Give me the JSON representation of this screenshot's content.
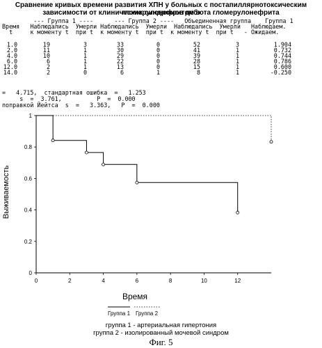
{
  "title_line1": "Сравнение кривых времени развития ХПН у больных с постапиллярнотоксическим гломерулонефритом в",
  "title_line2": "зависимости от клинических синдромов дебюта гломерулонефрита",
  "table": {
    "group_header": "         --- Группа 1 ----      --- Группа 2 ----   Объединенная группа    Группа 1",
    "header1": "Время   Наблюдались  Умерли Наблюдались  Умерли  Наблюдались  Умерли   Наблюдаем.",
    "header2": "  t     к моменту t  при t  к моменту t  при t  к моменту t  при t   - Ожидаем.",
    "rows": [
      {
        "t": "1.0",
        "n1": "19",
        "d1": "3",
        "n2": "33",
        "d2": "0",
        "n": "52",
        "d": "3",
        "diff": "1.904"
      },
      {
        "t": "2.0",
        "n1": "11",
        "d1": "1",
        "n2": "30",
        "d2": "0",
        "n": "41",
        "d": "1",
        "diff": "0.732"
      },
      {
        "t": "4.0",
        "n1": "10",
        "d1": "1",
        "n2": "29",
        "d2": "0",
        "n": "39",
        "d": "1",
        "diff": "0.744"
      },
      {
        "t": "6.0",
        "n1": "6",
        "d1": "1",
        "n2": "22",
        "d2": "0",
        "n": "28",
        "d": "1",
        "diff": "0.786"
      },
      {
        "t": "12.0",
        "n1": "2",
        "d1": "1",
        "n2": "13",
        "d2": "0",
        "n": "15",
        "d": "1",
        "diff": "0.600"
      },
      {
        "t": "14.0",
        "n1": "2",
        "d1": "0",
        "n2": "6",
        "d2": "1",
        "n": "8",
        "d": "1",
        "diff": "-0.250"
      }
    ]
  },
  "stats": {
    "line1": "=   4.715,  стандартная ошибка  =   1.253",
    "line2": "     s  =  3.761,          P  =  0.000",
    "line3": "поправкой Йейтса  s  =   3.363,   P  =  0.000"
  },
  "chart_data": {
    "type": "line",
    "xlabel": "Время",
    "ylabel": "Выживаемость",
    "xlim": [
      0,
      14
    ],
    "ylim": [
      0,
      1
    ],
    "x_ticks": [
      "0",
      "2",
      "4",
      "6",
      "8",
      "10",
      "12"
    ],
    "y_ticks": [
      "0",
      "0.2",
      "0.4",
      "0.6",
      "0.8",
      "1"
    ],
    "series": [
      {
        "name": "Группа 1",
        "style": "solid",
        "x": [
          0,
          1,
          3,
          4,
          6,
          12
        ],
        "y": [
          1.0,
          0.842,
          0.765,
          0.689,
          0.574,
          0.383
        ]
      },
      {
        "name": "Группа 2",
        "style": "dotted",
        "x": [
          0,
          14
        ],
        "y": [
          1.0,
          0.833
        ]
      }
    ]
  },
  "legend": {
    "g1": "Группа 1",
    "g2": "Группа 2"
  },
  "caption_line1": "группа 1 - артериальная гипертония",
  "caption_line2": "группа 2 - изолированный мочевой синдром",
  "figure_label": "Фиг. 5"
}
